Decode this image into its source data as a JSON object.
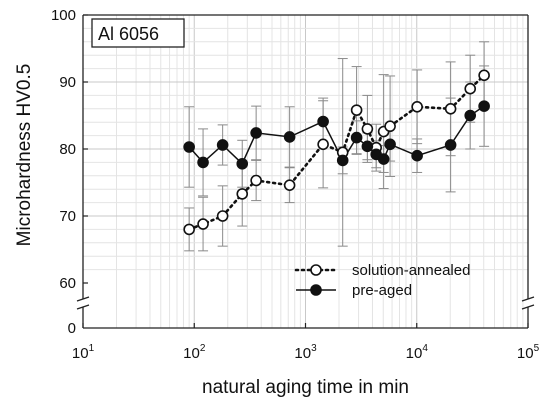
{
  "chart_data": {
    "type": "scatter",
    "annotation": "Al 6056",
    "xlabel": "natural aging time in min",
    "ylabel": "Microhardness HV0.5",
    "x_scale": "log",
    "xlim": [
      10,
      100000
    ],
    "x_ticks": [
      {
        "value": 10,
        "base": "10",
        "exp": "1"
      },
      {
        "value": 100,
        "base": "10",
        "exp": "2"
      },
      {
        "value": 1000,
        "base": "10",
        "exp": "3"
      },
      {
        "value": 10000,
        "base": "10",
        "exp": "4"
      },
      {
        "value": 100000,
        "base": "10",
        "exp": "5"
      }
    ],
    "ylim": [
      58,
      100
    ],
    "y_ticks": [
      "60",
      "70",
      "80",
      "90",
      "100"
    ],
    "y_ticks_values": [
      60,
      70,
      80,
      90,
      100
    ],
    "y_zero_label": "0",
    "axis_break": true,
    "grid": true,
    "legend_position": "bottom-right",
    "series": [
      {
        "name": "solution-annealed",
        "style": "dotted-line-open-circle",
        "color": "#111111",
        "points": [
          {
            "x": 90,
            "y": 68.0,
            "err": 3.2
          },
          {
            "x": 120,
            "y": 68.8,
            "err": 4.0
          },
          {
            "x": 180,
            "y": 70.0,
            "err": 4.5
          },
          {
            "x": 270,
            "y": 73.3,
            "err": 4.8
          },
          {
            "x": 360,
            "y": 75.3,
            "err": 3.0
          },
          {
            "x": 720,
            "y": 74.6,
            "err": 2.6
          },
          {
            "x": 1440,
            "y": 80.7,
            "err": 6.5
          },
          {
            "x": 2160,
            "y": 79.5,
            "err": 14.0
          },
          {
            "x": 2880,
            "y": 85.8,
            "err": 6.5
          },
          {
            "x": 3600,
            "y": 83.0,
            "err": 5.0
          },
          {
            "x": 4320,
            "y": 80.2,
            "err": 3.5
          },
          {
            "x": 5040,
            "y": 82.6,
            "err": 8.5
          },
          {
            "x": 5760,
            "y": 83.4,
            "err": 7.5
          },
          {
            "x": 10080,
            "y": 86.3,
            "err": 5.5
          },
          {
            "x": 20160,
            "y": 86.0,
            "err": 7.0
          },
          {
            "x": 30240,
            "y": 89.0,
            "err": 5.0
          },
          {
            "x": 40320,
            "y": 91.0,
            "err": 5.0
          }
        ]
      },
      {
        "name": "pre-aged",
        "style": "solid-line-filled-circle",
        "color": "#111111",
        "points": [
          {
            "x": 90,
            "y": 80.3,
            "err": 6.0
          },
          {
            "x": 120,
            "y": 78.0,
            "err": 5.0
          },
          {
            "x": 180,
            "y": 80.6,
            "err": 3.0
          },
          {
            "x": 270,
            "y": 77.8,
            "err": 3.5
          },
          {
            "x": 360,
            "y": 82.4,
            "err": 4.0
          },
          {
            "x": 720,
            "y": 81.8,
            "err": 4.5
          },
          {
            "x": 1440,
            "y": 84.1,
            "err": 3.5
          },
          {
            "x": 2160,
            "y": 78.3,
            "err": 2.0
          },
          {
            "x": 2880,
            "y": 81.7,
            "err": 2.5
          },
          {
            "x": 3600,
            "y": 80.4,
            "err": 2.0
          },
          {
            "x": 4320,
            "y": 79.2,
            "err": 2.0
          },
          {
            "x": 5040,
            "y": 78.5,
            "err": 2.0
          },
          {
            "x": 5760,
            "y": 80.7,
            "err": 2.5
          },
          {
            "x": 10080,
            "y": 79.0,
            "err": 2.5
          },
          {
            "x": 20160,
            "y": 80.6,
            "err": 7.0
          },
          {
            "x": 30240,
            "y": 85.0,
            "err": 5.0
          },
          {
            "x": 40320,
            "y": 86.4,
            "err": 6.0
          }
        ]
      }
    ]
  }
}
